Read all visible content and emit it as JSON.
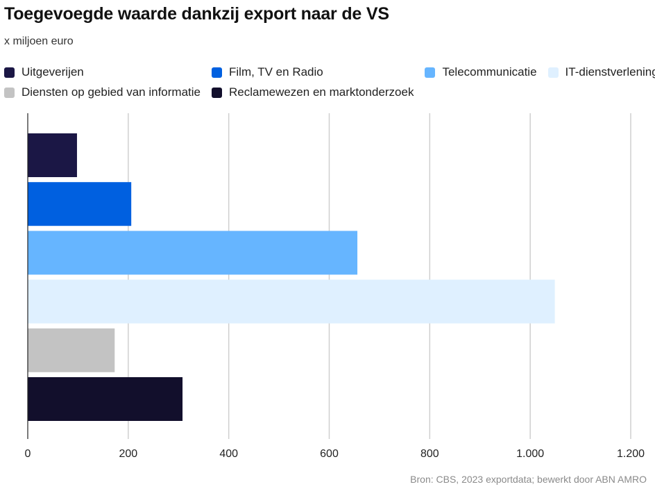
{
  "title": "Toegevoegde waarde dankzij export naar de VS",
  "subtitle": "x miljoen euro",
  "source": "Bron:  CBS, 2023 exportdata; bewerkt door ABN AMRO",
  "chart_data": {
    "type": "bar",
    "orientation": "horizontal",
    "title": "Toegevoegde waarde dankzij export naar de VS",
    "subtitle": "x miljoen euro",
    "categories": [
      "Uitgeverijen",
      "Film, TV en Radio",
      "Telecommunicatie",
      "IT-dienstverlening",
      "Diensten op gebied van informatie",
      "Reclamewezen en marktonderzoek"
    ],
    "values": [
      98,
      206,
      656,
      1049,
      173,
      308
    ],
    "colors": [
      "#1b1745",
      "#0060e0",
      "#66b5ff",
      "#dff0ff",
      "#c3c3c3",
      "#120f2c"
    ],
    "xlim": [
      0,
      1200
    ],
    "xticks": [
      0,
      200,
      400,
      600,
      800,
      1000,
      1200
    ],
    "xtick_labels": [
      "0",
      "200",
      "400",
      "600",
      "800",
      "1.000",
      "1.200"
    ],
    "grid": true,
    "legend_position": "top",
    "xlabel": "",
    "ylabel": ""
  }
}
